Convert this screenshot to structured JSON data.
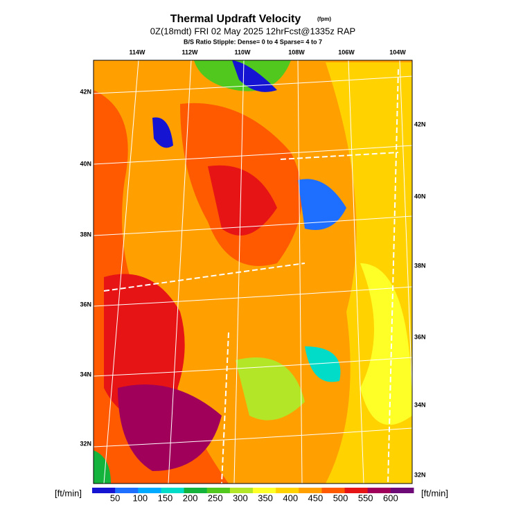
{
  "header": {
    "title": "Thermal Updraft Velocity",
    "title_unit": "(fpm)",
    "subtitle": "0Z(18mdt) FRI 02 May 2025 12hrFcst@1335z RAP",
    "stipple_note": "B/S Ratio Stipple:  Dense= 0 to 4  Sparse= 4 to 7"
  },
  "map": {
    "longitude_labels": [
      "114W",
      "112W",
      "110W",
      "108W",
      "106W",
      "104W"
    ],
    "latitude_labels_left": [
      "42N",
      "40N",
      "38N",
      "36N",
      "34N",
      "32N"
    ],
    "latitude_labels_right": [
      "42N",
      "40N",
      "38N",
      "36N",
      "34N",
      "32N"
    ]
  },
  "legend": {
    "unit_left": "[ft/min]",
    "unit_right": "[ft/min]",
    "labels": [
      "50",
      "100",
      "150",
      "200",
      "250",
      "300",
      "350",
      "400",
      "450",
      "500",
      "550",
      "600"
    ],
    "colors": [
      "#1414d2",
      "#1e6eff",
      "#00aaff",
      "#00dcc8",
      "#14b43c",
      "#50c81e",
      "#b4e628",
      "#ffff28",
      "#ffd200",
      "#ffa000",
      "#ff5a00",
      "#e61414",
      "#a0005a",
      "#6e0a78"
    ]
  }
}
